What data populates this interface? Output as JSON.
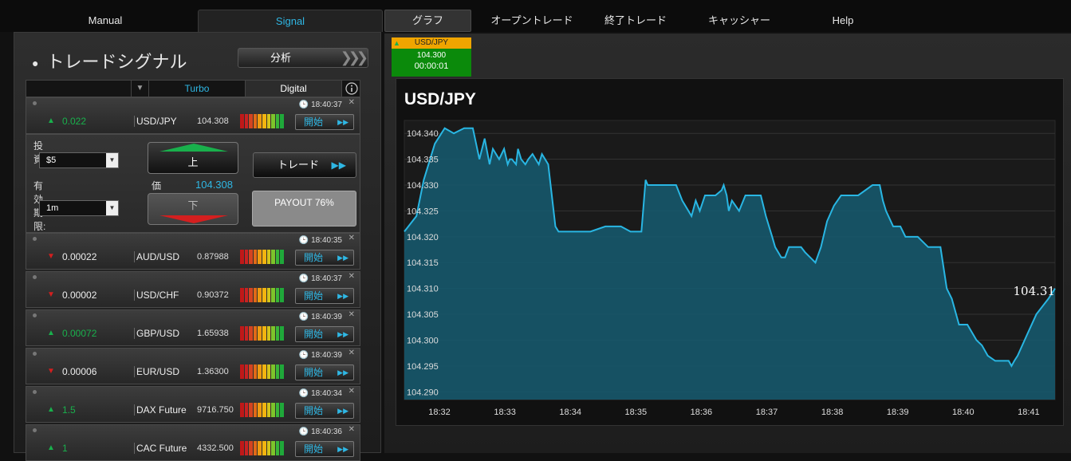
{
  "nav": {
    "manual": "Manual",
    "signal": "Signal",
    "graph": "グラフ",
    "open_trades": "オープントレード",
    "closed_trades": "終了トレード",
    "cashier": "キャッシャー",
    "help": "Help"
  },
  "signal_panel": {
    "title": "トレードシグナル",
    "analyze": "分析",
    "filter": {
      "selected": "",
      "turbo": "Turbo",
      "digital": "Digital"
    },
    "rows": [
      {
        "direction": "up",
        "change": "0.022",
        "symbol": "USD/JPY",
        "price": "104.308",
        "time": "18:40:37",
        "start": "開始"
      },
      {
        "direction": "down",
        "change": "0.00022",
        "symbol": "AUD/USD",
        "price": "0.87988",
        "time": "18:40:35",
        "start": "開始"
      },
      {
        "direction": "down",
        "change": "0.00002",
        "symbol": "USD/CHF",
        "price": "0.90372",
        "time": "18:40:37",
        "start": "開始"
      },
      {
        "direction": "up",
        "change": "0.00072",
        "symbol": "GBP/USD",
        "price": "1.65938",
        "time": "18:40:39",
        "start": "開始"
      },
      {
        "direction": "down",
        "change": "0.00006",
        "symbol": "EUR/USD",
        "price": "1.36300",
        "time": "18:40:39",
        "start": "開始"
      },
      {
        "direction": "up",
        "change": "1.5",
        "symbol": "DAX Future",
        "price": "9716.750",
        "time": "18:40:34",
        "start": "開始"
      },
      {
        "direction": "up",
        "change": "1",
        "symbol": "CAC Future",
        "price": "4332.500",
        "time": "18:40:36",
        "start": "開始"
      }
    ],
    "detail": {
      "invest_label": "投資:",
      "invest_value": "$5",
      "expiry_label": "有効期限:",
      "expiry_value": "1m",
      "up_label": "上",
      "down_label": "下",
      "price_label": "価",
      "price_value": "104.308",
      "trade_label": "トレード",
      "payout": "PAYOUT 76%"
    }
  },
  "asset_card": {
    "symbol": "USD/JPY",
    "price": "104.300",
    "timer": "00:00:01"
  },
  "colors": {
    "accent": "#2fb7e4",
    "up": "#19b04c",
    "down": "#d41f1f",
    "card_header": "#f0a500",
    "card_body": "#0b8a0b",
    "series": "#29b6e3"
  },
  "chart_data": {
    "type": "area",
    "title": "USD/JPY",
    "last_label": "104.31",
    "x_ticks": [
      "18:32",
      "18:33",
      "18:34",
      "18:35",
      "18:36",
      "18:37",
      "18:38",
      "18:39",
      "18:40",
      "18:41"
    ],
    "y_ticks": [
      "104.340",
      "104.335",
      "104.330",
      "104.325",
      "104.320",
      "104.315",
      "104.310",
      "104.305",
      "104.300",
      "104.295",
      "104.290"
    ],
    "ylim": [
      104.2885,
      104.3425
    ],
    "xlim": [
      18.2617,
      18.6967
    ],
    "grid": true,
    "series": [
      {
        "x": [
          18.2617,
          18.2698,
          18.2747,
          18.2821,
          18.2887,
          18.2948,
          18.3017,
          18.3075,
          18.3119,
          18.3154,
          18.3187,
          18.3209,
          18.3251,
          18.3284,
          18.3308,
          18.3322,
          18.3336,
          18.3364,
          18.3377,
          18.3398,
          18.3426,
          18.3446,
          18.3474,
          18.3516,
          18.3537,
          18.3579,
          18.3627,
          18.3648,
          18.3682,
          18.3731,
          18.3861,
          18.3961,
          18.4065,
          18.4129,
          18.4202,
          18.423,
          18.4244,
          18.4279,
          18.4434,
          18.4475,
          18.4537,
          18.4565,
          18.4592,
          18.4627,
          18.4697,
          18.4738,
          18.4752,
          18.4772,
          18.4786,
          18.4807,
          18.4855,
          18.4883,
          18.4897,
          18.5,
          18.5034,
          18.5076,
          18.5096,
          18.5137,
          18.5162,
          18.5188,
          18.5269,
          18.5296,
          18.5365,
          18.5402,
          18.5443,
          18.5489,
          18.5537,
          18.5651,
          18.5747,
          18.5778,
          18.5795,
          18.5816,
          18.5837,
          18.5885,
          18.5933,
          18.5967,
          18.6049,
          18.6084,
          18.6119,
          18.6165,
          18.6201,
          18.6243,
          18.6277,
          18.6325,
          18.6381,
          18.6442,
          18.6478,
          18.6517,
          18.6567,
          18.6612,
          18.6657,
          18.6676,
          18.6695,
          18.6717,
          18.6779,
          18.6842,
          18.6922,
          18.6967
        ],
        "y": [
          104.321,
          104.324,
          104.331,
          104.338,
          104.341,
          104.34,
          104.341,
          104.341,
          104.335,
          104.339,
          104.334,
          104.337,
          104.335,
          104.337,
          104.334,
          104.335,
          104.335,
          104.334,
          104.337,
          104.335,
          104.334,
          104.335,
          104.336,
          104.334,
          104.336,
          104.334,
          104.322,
          104.321,
          104.321,
          104.321,
          104.321,
          104.322,
          104.322,
          104.321,
          104.321,
          104.331,
          104.33,
          104.33,
          104.33,
          104.327,
          104.324,
          104.327,
          104.325,
          104.328,
          104.328,
          104.329,
          104.33,
          104.328,
          104.325,
          104.327,
          104.325,
          104.327,
          104.328,
          104.328,
          104.324,
          104.32,
          104.318,
          104.316,
          104.316,
          104.318,
          104.318,
          104.317,
          104.315,
          104.318,
          104.323,
          104.326,
          104.328,
          104.328,
          104.33,
          104.33,
          104.33,
          104.327,
          104.325,
          104.322,
          104.322,
          104.32,
          104.32,
          104.319,
          104.318,
          104.318,
          104.318,
          104.31,
          104.308,
          104.303,
          104.303,
          104.3,
          104.299,
          104.297,
          104.296,
          104.296,
          104.296,
          104.295,
          104.296,
          104.297,
          104.301,
          104.305,
          104.308,
          104.31
        ]
      }
    ]
  }
}
